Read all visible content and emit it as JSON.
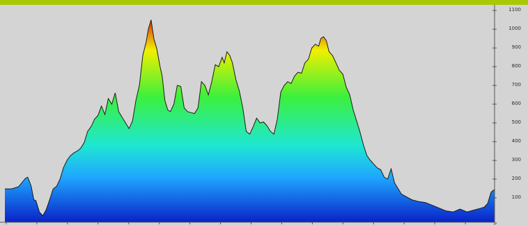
{
  "colors": {
    "background": "#d4d4d4",
    "topbar": "#a7c905",
    "outline": "#1a1a1a",
    "gradient_bottom": "#0a22c8",
    "gradient_low": "#1fa6ff",
    "gradient_mid": "#1fe7d2",
    "gradient_green": "#3cf03c",
    "gradient_yellow": "#f0f000",
    "gradient_top": "#e03010"
  },
  "chart_data": {
    "type": "area",
    "title": "",
    "xlabel": "",
    "ylabel": "",
    "grid": false,
    "ylim": [
      -30,
      1130
    ],
    "y_tick_values": [
      100,
      200,
      300,
      400,
      500,
      600,
      700,
      800,
      900,
      1000,
      1100
    ],
    "y_tick_labels": [
      "100",
      "200",
      "300",
      "400",
      "500",
      "600",
      "700",
      "800",
      "900",
      "1000",
      "1100"
    ],
    "x_ticks_count": 17,
    "x": [
      0,
      10,
      20,
      30,
      33,
      38,
      42,
      45,
      50,
      55,
      60,
      65,
      70,
      75,
      80,
      85,
      90,
      95,
      100,
      105,
      110,
      115,
      120,
      125,
      130,
      135,
      140,
      145,
      150,
      155,
      160,
      165,
      170,
      175,
      180,
      185,
      190,
      195,
      200,
      205,
      208,
      212,
      216,
      220,
      222,
      225,
      228,
      232,
      236,
      240,
      245,
      250,
      255,
      260,
      265,
      270,
      275,
      280,
      285,
      290,
      295,
      300,
      305,
      310,
      315,
      318,
      322,
      326,
      330,
      335,
      340,
      345,
      350,
      355,
      360,
      365,
      370,
      375,
      380,
      385,
      390,
      395,
      400,
      405,
      410,
      415,
      420,
      425,
      430,
      435,
      440,
      445,
      450,
      455,
      458,
      462,
      466,
      470,
      475,
      480,
      485,
      490,
      495,
      500,
      505,
      510,
      515,
      520,
      525,
      530,
      535,
      540,
      545,
      550,
      555,
      560,
      565,
      570,
      575,
      580,
      590,
      600,
      610,
      620,
      630,
      640,
      650,
      660,
      670,
      680,
      690,
      695,
      700,
      705,
      710
    ],
    "series": [
      {
        "values": [
          148,
          148,
          160,
          205,
          210,
          165,
          90,
          85,
          25,
          5,
          38,
          92,
          148,
          162,
          200,
          262,
          300,
          325,
          340,
          350,
          365,
          395,
          455,
          480,
          520,
          540,
          590,
          545,
          630,
          600,
          660,
          560,
          530,
          500,
          470,
          510,
          620,
          700,
          860,
          935,
          1000,
          1050,
          950,
          900,
          860,
          800,
          750,
          620,
          570,
          560,
          600,
          700,
          695,
          580,
          560,
          555,
          550,
          580,
          720,
          700,
          650,
          720,
          810,
          800,
          850,
          820,
          880,
          860,
          820,
          730,
          670,
          580,
          455,
          440,
          480,
          525,
          500,
          505,
          485,
          455,
          440,
          520,
          665,
          700,
          720,
          710,
          750,
          770,
          765,
          820,
          840,
          900,
          920,
          910,
          950,
          960,
          940,
          880,
          860,
          820,
          780,
          760,
          690,
          650,
          570,
          510,
          450,
          380,
          325,
          300,
          280,
          260,
          250,
          210,
          200,
          255,
          180,
          150,
          120,
          110,
          90,
          80,
          75,
          60,
          45,
          30,
          25,
          40,
          25,
          35,
          45,
          50,
          70,
          130,
          145
        ]
      }
    ]
  }
}
